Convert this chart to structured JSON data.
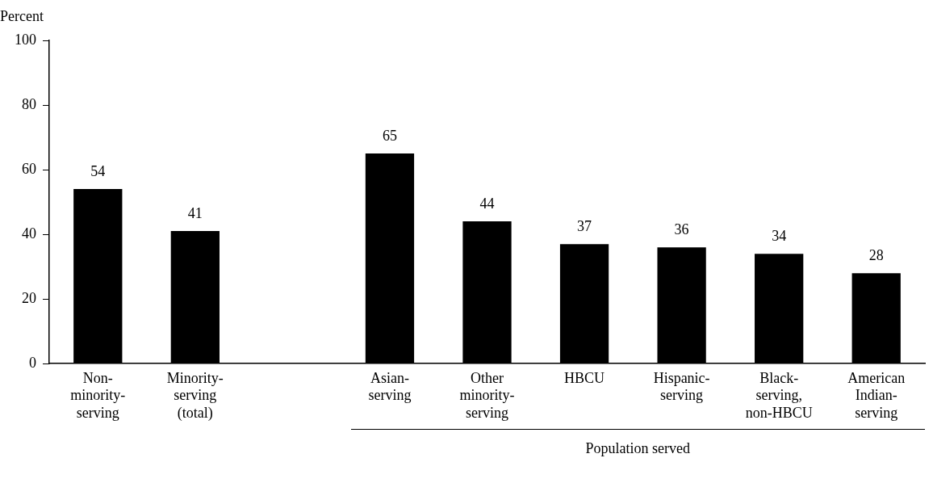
{
  "chart_data": {
    "type": "bar",
    "ylabel": "Percent",
    "xlabel": "Population served",
    "categories": [
      "Non-\nminority-\nserving",
      "Minority-\nserving\n(total)",
      null,
      "Asian-\nserving",
      "Other\nminority-\nserving",
      "HBCU",
      "Hispanic-\nserving",
      "Black-\nserving,\nnon-HBCU",
      "American\nIndian-\nserving"
    ],
    "values": [
      54,
      41,
      null,
      65,
      44,
      37,
      36,
      34,
      28
    ],
    "color": "#000000",
    "ylim": [
      0,
      100
    ],
    "yticks": [
      0,
      20,
      40,
      60,
      80,
      100
    ],
    "grid": false,
    "legend": false,
    "data_labels": true
  }
}
